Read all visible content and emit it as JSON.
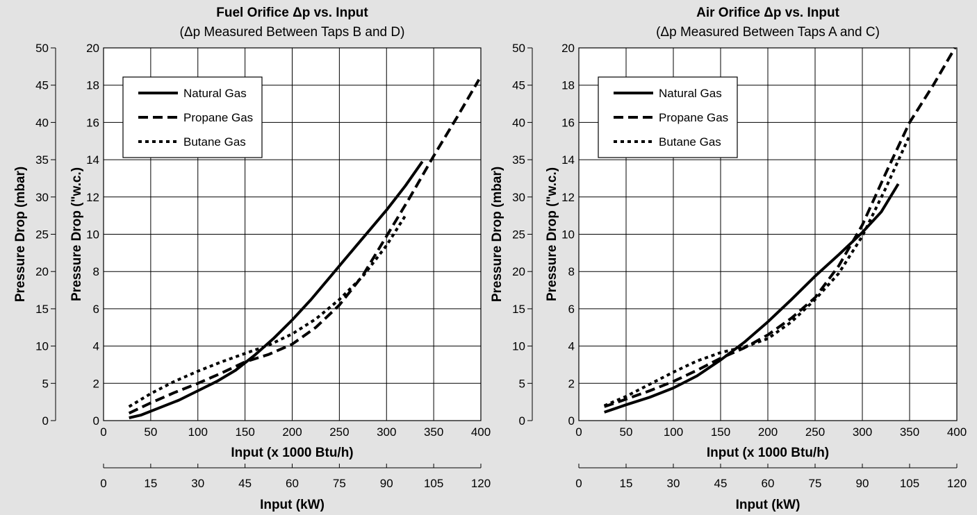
{
  "chart_data": [
    {
      "type": "line",
      "title": "Fuel Orifice Δp vs. Input",
      "subtitle": "(Δp Measured Between Taps B and D)",
      "xlabel": "Input (x 1000 Btu/h)",
      "x2label": "Input (kW)",
      "ylabel": "Pressure Drop (\"w.c.)",
      "y2label": "Pressure Drop (mbar)",
      "xlim": [
        0,
        400
      ],
      "ylim": [
        0,
        20
      ],
      "x2lim": [
        0,
        120
      ],
      "y2lim": [
        0,
        50
      ],
      "xticks": [
        "0",
        "50",
        "100",
        "150",
        "200",
        "250",
        "300",
        "350",
        "400"
      ],
      "yticks": [
        "0",
        "2",
        "4",
        "6",
        "8",
        "10",
        "12",
        "14",
        "16",
        "18",
        "20"
      ],
      "x2ticks": [
        "0",
        "15",
        "30",
        "45",
        "60",
        "75",
        "90",
        "105",
        "120"
      ],
      "y2ticks": [
        "0",
        "5",
        "10",
        "15",
        "20",
        "25",
        "30",
        "35",
        "40",
        "45",
        "50"
      ],
      "grid": true,
      "legend_position": "top-left",
      "series": [
        {
          "name": "Natural Gas",
          "style": "solid",
          "x": [
            27,
            40,
            60,
            80,
            100,
            120,
            140,
            160,
            180,
            200,
            220,
            240,
            260,
            280,
            300,
            320,
            338
          ],
          "y": [
            0.15,
            0.3,
            0.7,
            1.1,
            1.6,
            2.1,
            2.7,
            3.5,
            4.4,
            5.4,
            6.5,
            7.7,
            8.9,
            10.1,
            11.3,
            12.6,
            13.9
          ]
        },
        {
          "name": "Propane Gas",
          "style": "dashed",
          "x": [
            27,
            50,
            75,
            100,
            125,
            150,
            175,
            200,
            225,
            250,
            275,
            300,
            325,
            350,
            375,
            398
          ],
          "y": [
            0.4,
            0.95,
            1.5,
            2.0,
            2.55,
            3.15,
            3.55,
            4.1,
            5.0,
            6.2,
            7.8,
            9.9,
            12.0,
            14.2,
            16.3,
            18.3
          ]
        },
        {
          "name": "Butane Gas",
          "style": "dotted",
          "x": [
            27,
            50,
            75,
            100,
            125,
            150,
            175,
            200,
            225,
            250,
            275,
            300,
            320
          ],
          "y": [
            0.75,
            1.45,
            2.1,
            2.65,
            3.15,
            3.6,
            4.05,
            4.65,
            5.45,
            6.5,
            7.75,
            9.4,
            11.0
          ]
        }
      ]
    },
    {
      "type": "line",
      "title": "Air Orifice Δp vs. Input",
      "subtitle": "(Δp Measured Between Taps A and C)",
      "xlabel": "Input (x 1000 Btu/h)",
      "x2label": "Input (kW)",
      "ylabel": "Pressure Drop (\"w.c.)",
      "y2label": "Pressure Drop (mbar)",
      "xlim": [
        0,
        400
      ],
      "ylim": [
        0,
        20
      ],
      "x2lim": [
        0,
        120
      ],
      "y2lim": [
        0,
        50
      ],
      "xticks": [
        "0",
        "50",
        "100",
        "150",
        "200",
        "250",
        "300",
        "350",
        "400"
      ],
      "yticks": [
        "0",
        "2",
        "4",
        "6",
        "8",
        "10",
        "12",
        "14",
        "16",
        "18",
        "20"
      ],
      "x2ticks": [
        "0",
        "15",
        "30",
        "45",
        "60",
        "75",
        "90",
        "105",
        "120"
      ],
      "y2ticks": [
        "0",
        "5",
        "10",
        "15",
        "20",
        "25",
        "30",
        "35",
        "40",
        "45",
        "50"
      ],
      "grid": true,
      "legend_position": "top-left",
      "series": [
        {
          "name": "Natural Gas",
          "style": "solid",
          "x": [
            27,
            50,
            75,
            100,
            125,
            150,
            175,
            200,
            225,
            250,
            275,
            300,
            320,
            338
          ],
          "y": [
            0.45,
            0.85,
            1.25,
            1.75,
            2.4,
            3.25,
            4.2,
            5.3,
            6.5,
            7.75,
            8.9,
            10.1,
            11.2,
            12.7
          ]
        },
        {
          "name": "Propane Gas",
          "style": "dashed",
          "x": [
            27,
            50,
            75,
            100,
            125,
            150,
            175,
            200,
            225,
            250,
            275,
            300,
            325,
            350,
            375,
            398
          ],
          "y": [
            0.75,
            1.15,
            1.6,
            2.1,
            2.7,
            3.35,
            3.9,
            4.6,
            5.5,
            6.6,
            8.3,
            10.5,
            13.3,
            16.0,
            18.0,
            20.0
          ]
        },
        {
          "name": "Butane Gas",
          "style": "dotted",
          "x": [
            27,
            50,
            75,
            100,
            125,
            150,
            175,
            200,
            225,
            250,
            275,
            300,
            325,
            350
          ],
          "y": [
            0.8,
            1.3,
            1.95,
            2.6,
            3.2,
            3.65,
            3.95,
            4.4,
            5.3,
            6.5,
            7.9,
            9.9,
            12.5,
            15.3
          ]
        }
      ]
    }
  ]
}
